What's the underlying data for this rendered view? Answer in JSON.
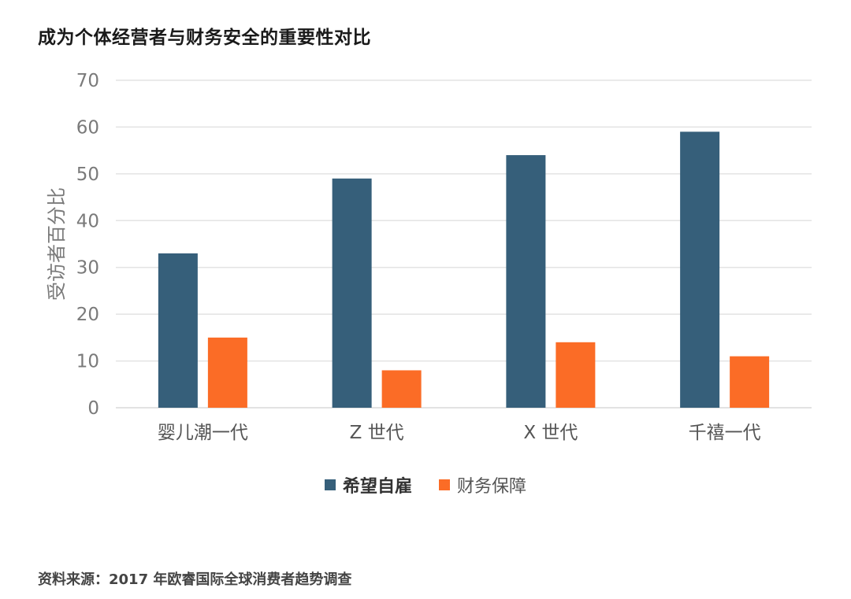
{
  "title": "成为个体经营者与财务安全的重要性对比",
  "source": "资料来源：2017 年欧睿国际全球消费者趋势调查",
  "colors": {
    "series_0": "#365f7a",
    "series_1": "#fb6c26",
    "grid": "#e3e3e3",
    "tick_text": "#7a7a7a"
  },
  "chart_data": {
    "type": "bar",
    "title": "成为个体经营者与财务安全的重要性对比",
    "xlabel": "",
    "ylabel": "受访者百分比",
    "ylim": [
      0,
      70
    ],
    "yticks": [
      0,
      10,
      20,
      30,
      40,
      50,
      60,
      70
    ],
    "categories": [
      "婴儿潮一代",
      "Z 世代",
      "X 世代",
      "千禧一代"
    ],
    "series": [
      {
        "name": "希望自雇",
        "values": [
          33,
          49,
          54,
          59
        ]
      },
      {
        "name": "财务保障",
        "values": [
          15,
          8,
          14,
          11
        ]
      }
    ],
    "grid": true,
    "legend_position": "bottom"
  }
}
